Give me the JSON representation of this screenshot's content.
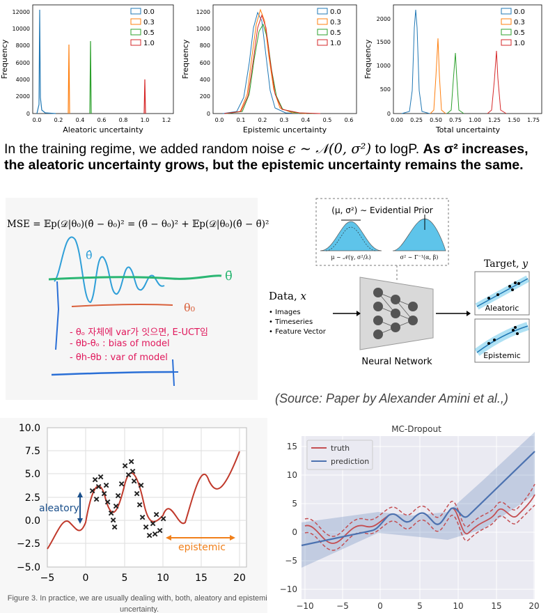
{
  "histograms": [
    {
      "xlabel": "Aleatoric uncertainty",
      "ylabel": "Frequency",
      "xticks": [
        "0.0",
        "0.2",
        "0.4",
        "0.6",
        "0.8",
        "1.0",
        "1.2"
      ],
      "yticks": [
        "0",
        "2000",
        "4000",
        "6000",
        "8000",
        "10000",
        "12000"
      ],
      "legend": [
        "0.0",
        "0.3",
        "0.5",
        "1.0"
      ]
    },
    {
      "xlabel": "Epistemic uncertainty",
      "ylabel": "Frequency",
      "xticks": [
        "0.0",
        "0.1",
        "0.2",
        "0.3",
        "0.4",
        "0.5",
        "0.6"
      ],
      "yticks": [
        "0",
        "200",
        "400",
        "600",
        "800",
        "1000",
        "1200"
      ],
      "legend": [
        "0.0",
        "0.3",
        "0.5",
        "1.0"
      ]
    },
    {
      "xlabel": "Total uncertainty",
      "ylabel": "Frequency",
      "xticks": [
        "0.00",
        "0.25",
        "0.50",
        "0.75",
        "1.00",
        "1.25",
        "1.50",
        "1.75"
      ],
      "yticks": [
        "0",
        "500",
        "1000",
        "1500",
        "2000"
      ],
      "legend": [
        "0.0",
        "0.3",
        "0.5",
        "1.0"
      ]
    }
  ],
  "caption": {
    "part1": "In the training regime, we added random noise ",
    "math": "ϵ ∼ 𝒩(0, σ²)",
    "part2": " to logP. ",
    "bold": "As σ² increases, the aleatoric uncertainty grows, but the epistemic uncertainty remains the same."
  },
  "sketch": {
    "formula": "MSE = 𝔼p(𝒟|θ₀)(θ̂ − θ₀)² = (θ̄ − θ₀)² + 𝔼p(𝒟|θ₀)(θ̂ − θ̄)²",
    "notes": [
      "- θₒ 자체에 var가 잇으면, E-UCT임",
      "- θb-θₒ  : bias of model",
      "- θh-θb : var of model"
    ]
  },
  "evidential": {
    "prior_label": "(μ, σ²) ∼ Evidential Prior",
    "mu_label": "μ ∼ 𝒩(γ, σ²/λ)",
    "sigma_label": "σ² ∼ Γ⁻¹(α, β)",
    "data_label": "Data, 𝑥",
    "inputs": [
      "• Images",
      "• Timeseries",
      "• Feature Vector"
    ],
    "network_label": "Neural Network",
    "target_label": "Target, 𝑦",
    "box1": "Aleatoric",
    "box2": "Epistemic"
  },
  "source": "(Source: Paper by Alexander Amini et al.,)",
  "fig3": {
    "yticks": [
      "10.0",
      "7.5",
      "5.0",
      "2.5",
      "0.0",
      "−2.5",
      "−5.0"
    ],
    "xticks": [
      "−5",
      "0",
      "5",
      "10",
      "15",
      "20"
    ],
    "aleatory": "aleatory",
    "epistemic": "epistemic",
    "caption1": "Figure 3. In practice, we are usually dealing with, both, aleatory and epistemic",
    "caption2": "uncertainty."
  },
  "mc": {
    "title": "MC-Dropout",
    "legend": [
      "truth",
      "prediction"
    ],
    "yticks": [
      "15",
      "10",
      "5",
      "0",
      "−5",
      "−10"
    ],
    "xticks": [
      "−10",
      "−5",
      "0",
      "5",
      "10",
      "15",
      "20"
    ]
  },
  "colors": {
    "c0": "#1f77b4",
    "c1": "#ff7f0e",
    "c2": "#2ca02c",
    "c3": "#d62728"
  }
}
